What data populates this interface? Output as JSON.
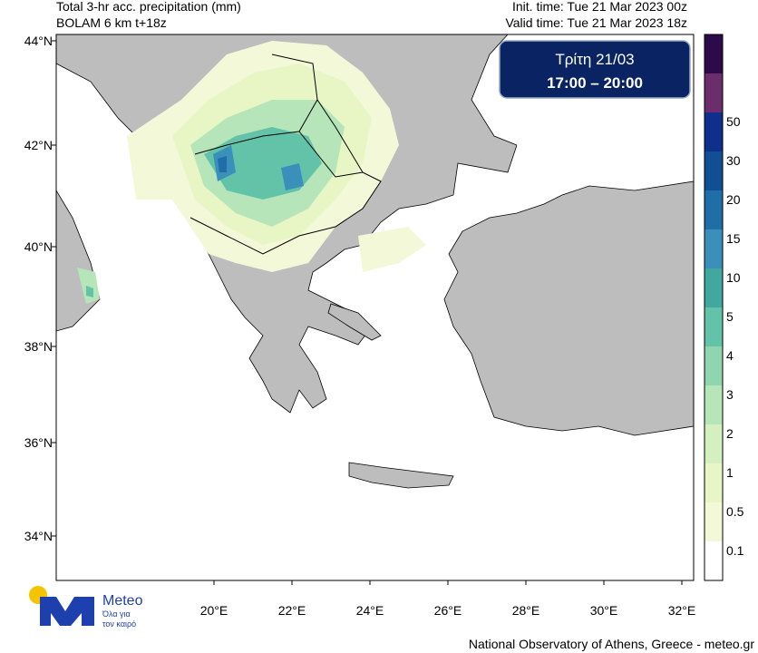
{
  "header": {
    "title_line1": "Total 3-hr acc. precipitation (mm)",
    "title_line2": "BOLAM 6 km t+18z",
    "init_time": "Init. time: Tue 21 Mar 2023 00z",
    "valid_time": "Valid time: Tue 21 Mar 2023 18z"
  },
  "date_box": {
    "day": "Τρίτη 21/03",
    "hours": "17:00 – 20:00"
  },
  "map": {
    "lat_labels": [
      "44°N",
      "42°N",
      "40°N",
      "38°N",
      "36°N",
      "34°N"
    ],
    "lon_labels": [
      "20°E",
      "22°E",
      "24°E",
      "26°E",
      "28°E",
      "30°E",
      "32°E"
    ]
  },
  "colorbar": {
    "levels": [
      0.1,
      0.5,
      1,
      2,
      3,
      4,
      5,
      10,
      15,
      20,
      30,
      50
    ],
    "colors": [
      "#ffffff",
      "#f3f8d8",
      "#e8f5c4",
      "#d4efc0",
      "#b5e5b8",
      "#8fd6b0",
      "#63c3a8",
      "#42a89f",
      "#3a8fbb",
      "#1f6ea8",
      "#104f95",
      "#0f2f8c",
      "#6b2d6b",
      "#2c0b4a"
    ]
  },
  "logo": {
    "name": "Meteo",
    "tagline1": "Όλα για",
    "tagline2": "τον καιρό"
  },
  "footer": "National Observatory of Athens, Greece - meteo.gr"
}
